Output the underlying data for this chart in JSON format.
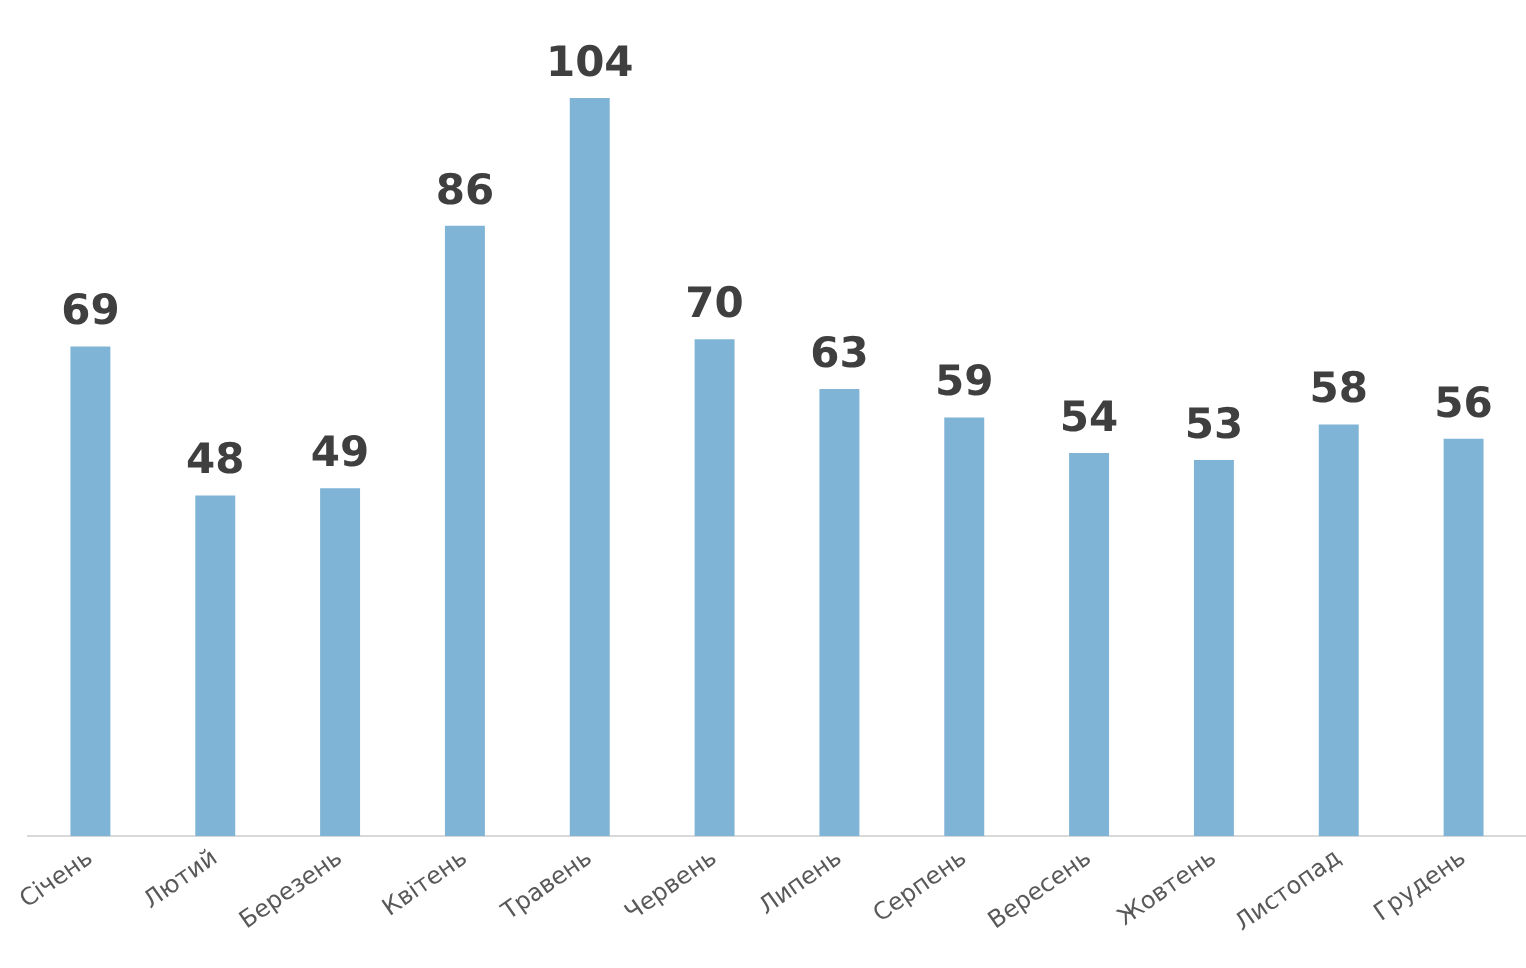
{
  "chart_data": {
    "type": "bar",
    "categories": [
      "Січень",
      "Лютий",
      "Березень",
      "Квітень",
      "Травень",
      "Червень",
      "Липень",
      "Серпень",
      "Вересень",
      "Жовтень",
      "Листопад",
      "Грудень"
    ],
    "values": [
      69,
      48,
      49,
      86,
      104,
      70,
      63,
      59,
      54,
      53,
      58,
      56
    ],
    "color": "#7fb4d6",
    "ylim": [
      0,
      104
    ],
    "tick_labels": "x",
    "data_labels": true,
    "legend": false
  }
}
